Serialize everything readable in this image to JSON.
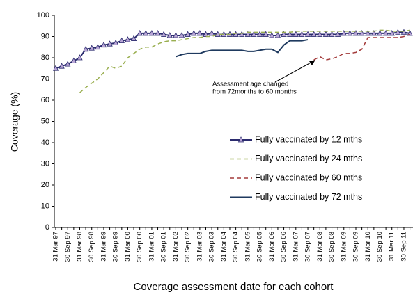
{
  "chart_data": {
    "type": "line",
    "x_label": "Coverage  assessment date for each cohort",
    "y_label": "Coverage (%)",
    "annotation": [
      "Assessment age changed",
      "from 72months to 60 months"
    ],
    "categories": [
      "31 Mar 97",
      null,
      "30 Sep 97",
      null,
      "31 Mar 98",
      null,
      "30 Sep 98",
      null,
      "31 Mar 99",
      null,
      "30 Sep 99",
      null,
      "31 Mar 00",
      null,
      "30 Sep 00",
      null,
      "31 Mar 01",
      null,
      "30 Sep 01",
      null,
      "31 Mar 02",
      null,
      "30 Sep 02",
      null,
      "31 Mar 03",
      null,
      "30 Sep 03",
      null,
      "31 Mar 04",
      null,
      "30 Sep 04",
      null,
      "31 Mar 05",
      null,
      "30 Sep 05",
      null,
      "31 Mar 06",
      null,
      "30 Sep 06",
      null,
      "31 Mar 07",
      null,
      "30 Sep 07",
      null,
      "31 Mar 08",
      null,
      "30 Sep 08",
      null,
      "31 Mar 09",
      null,
      "30 Sep 09",
      null,
      "31 Mar 10",
      null,
      "30 Sep 10",
      null,
      "31 Mar 11",
      null,
      "30 Sep 11",
      null
    ],
    "series": [
      {
        "name": "Fully vaccinated by 12 mths",
        "color": "#2b2b6e",
        "marker": "#b9a6d6",
        "dash": false,
        "values": [
          75,
          76,
          77,
          78.5,
          80,
          84,
          84.5,
          85,
          86,
          86.5,
          87,
          88,
          88.5,
          89,
          91.5,
          91.5,
          91.5,
          91.5,
          91,
          90.5,
          90.5,
          90.5,
          91,
          91.5,
          91.5,
          91,
          91.5,
          91,
          91,
          91,
          91,
          91,
          91,
          91,
          91,
          91,
          90.5,
          90.5,
          91,
          91,
          91,
          91,
          91,
          91,
          91,
          91,
          91,
          91,
          91.5,
          91.5,
          91.5,
          91.5,
          91.5,
          91.5,
          91.5,
          91.5,
          91.5,
          92,
          92,
          91.5
        ]
      },
      {
        "name": "Fully vaccinated by 24 mths",
        "color": "#9aaf50",
        "dash": true,
        "values": [
          null,
          null,
          null,
          null,
          63.5,
          66,
          68,
          70,
          73,
          76,
          75,
          76,
          80,
          82,
          84,
          85,
          85,
          86.5,
          87.5,
          88,
          88,
          88.5,
          89,
          89.5,
          89.5,
          90,
          90,
          91,
          91,
          91,
          91.5,
          91.5,
          92,
          92,
          92,
          92,
          92,
          92,
          92,
          92,
          92.5,
          92.5,
          92.5,
          92.5,
          92.5,
          92.5,
          92.5,
          92.5,
          92.5,
          92.5,
          92.5,
          92.5,
          92.5,
          92.5,
          93,
          93,
          92.5,
          92.5,
          92.5,
          93
        ]
      },
      {
        "name": "Fully vaccinated by 60 mths",
        "color": "#a33a3a",
        "dash": true,
        "values": [
          null,
          null,
          null,
          null,
          null,
          null,
          null,
          null,
          null,
          null,
          null,
          null,
          null,
          null,
          null,
          null,
          null,
          null,
          null,
          null,
          null,
          null,
          null,
          null,
          null,
          null,
          null,
          null,
          null,
          null,
          null,
          null,
          null,
          null,
          null,
          null,
          null,
          null,
          null,
          null,
          null,
          null,
          null,
          79,
          80.5,
          79,
          79.5,
          80.5,
          82,
          82,
          82.5,
          84,
          89.5,
          89.5,
          89.5,
          89.5,
          89.5,
          89.5,
          90,
          91
        ]
      },
      {
        "name": "Fully vaccinated by 72 mths",
        "color": "#1f3a5f",
        "dash": false,
        "values": [
          null,
          null,
          null,
          null,
          null,
          null,
          null,
          null,
          null,
          null,
          null,
          null,
          null,
          null,
          null,
          null,
          null,
          null,
          null,
          null,
          80.5,
          81.5,
          82,
          82,
          82,
          83,
          83.5,
          83.5,
          83.5,
          83.5,
          83.5,
          83.5,
          83,
          83,
          83.5,
          84,
          84,
          82.5,
          86,
          88,
          88,
          88,
          88.5,
          null,
          null,
          null,
          null,
          null,
          null,
          null,
          null,
          null,
          null,
          null,
          null,
          null,
          null,
          null,
          null,
          null
        ]
      }
    ],
    "ylim": [
      0,
      100
    ],
    "yticks": [
      0,
      10,
      20,
      30,
      40,
      50,
      60,
      70,
      80,
      90,
      100
    ]
  }
}
